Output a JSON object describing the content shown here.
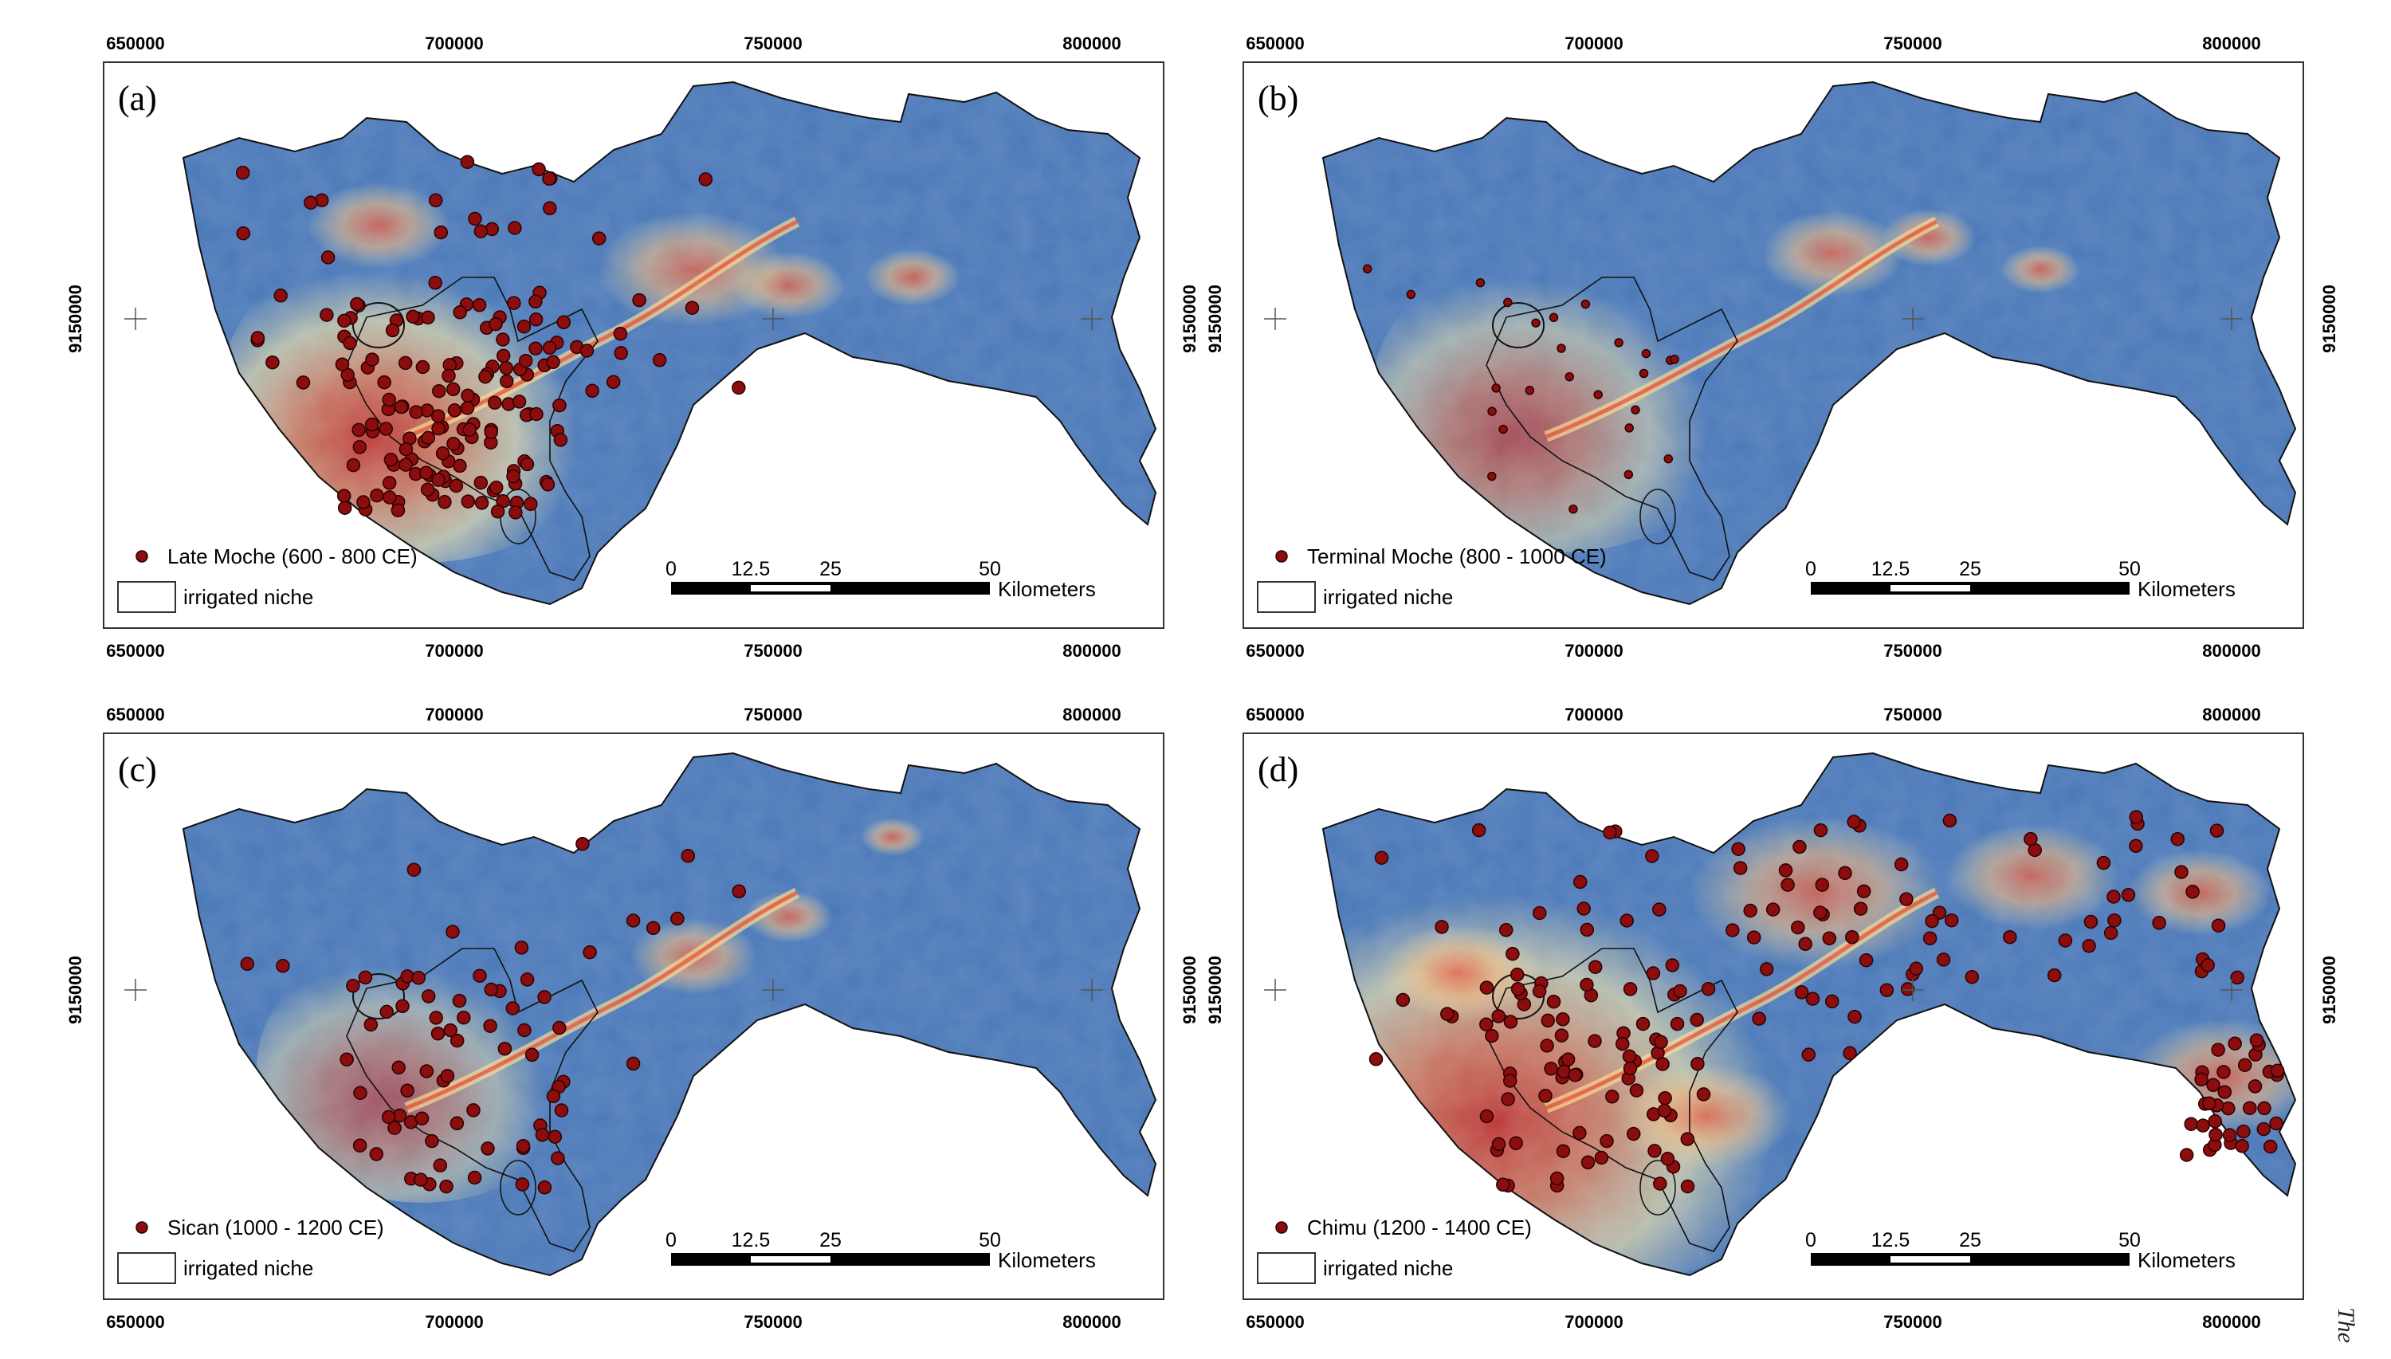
{
  "figure": {
    "x_ticks": [
      "650000",
      "700000",
      "750000",
      "800000"
    ],
    "y_tick": "9150000",
    "scalebar": {
      "labels": [
        "0",
        "12.5",
        "25",
        "50"
      ],
      "unit": "Kilometers"
    },
    "niche_label": "irrigated niche",
    "side_text": "The",
    "colors": {
      "low": "#4a78b8",
      "mid": "#f3e7a8",
      "high": "#d23a2a",
      "site_fill": "#8b0d0d",
      "outline": "#111111"
    }
  },
  "panels": [
    {
      "letter": "(a)",
      "legend": "Late Moche (600 - 800 CE)",
      "site_count_shown": 170
    },
    {
      "letter": "(b)",
      "legend": "Terminal Moche (800 - 1000 CE)",
      "site_count_shown": 25
    },
    {
      "letter": "(c)",
      "legend": "Sican (1000 - 1200 CE)",
      "site_count_shown": 75
    },
    {
      "letter": "(d)",
      "legend": "Chimu (1200 - 1400 CE)",
      "site_count_shown": 200
    }
  ]
}
